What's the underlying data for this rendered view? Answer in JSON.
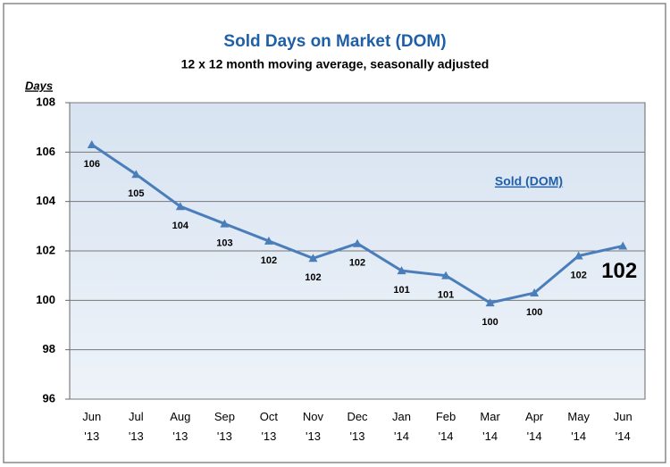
{
  "chart_data": {
    "type": "line",
    "title": "Sold Days on Market (DOM)",
    "subtitle": "12 x 12 month moving average, seasonally adjusted",
    "y_label": "Days",
    "categories": [
      "Jun '13",
      "Jul '13",
      "Aug '13",
      "Sep '13",
      "Oct '13",
      "Nov '13",
      "Dec '13",
      "Jan '14",
      "Feb '14",
      "Mar '14",
      "Apr '14",
      "May '14",
      "Jun '14"
    ],
    "series": [
      {
        "name": "Sold (DOM)",
        "color": "#4a7ebb",
        "values": [
          106.3,
          105.1,
          103.8,
          103.1,
          102.4,
          101.7,
          102.3,
          101.2,
          101.0,
          99.9,
          100.3,
          101.8,
          102.2
        ],
        "value_labels": [
          "106",
          "105",
          "104",
          "103",
          "102",
          "102",
          "102",
          "101",
          "101",
          "100",
          "100",
          "102",
          "102"
        ]
      }
    ],
    "ylim": [
      96,
      108
    ],
    "yticks": [
      96,
      98,
      100,
      102,
      104,
      106,
      108
    ],
    "grid": true
  }
}
